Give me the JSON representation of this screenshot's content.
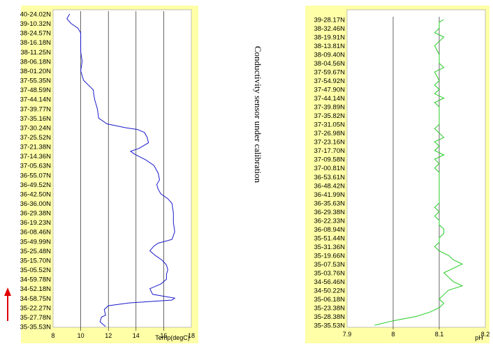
{
  "note": "Conductivity sensor under calibration",
  "colors": {
    "panel_bg": "#ffffa8",
    "plot_bg": "#ffffff",
    "temp_line": "#1a1acc",
    "ph_line": "#22cc22",
    "arrow": "#e00000",
    "grid": "#000000"
  },
  "chart_data": [
    {
      "type": "line",
      "xlabel": "Temp(degC)",
      "xlim": [
        8,
        18
      ],
      "xticks": [
        8,
        10,
        12,
        14,
        16,
        18
      ],
      "grid_x": [
        10,
        12,
        14,
        16
      ],
      "ylabels": [
        "40-24.02N",
        "39-10.32N",
        "38-24.57N",
        "38-16.18N",
        "38-11.25N",
        "38-06.18N",
        "38-01.20N",
        "37-55.35N",
        "37-48.59N",
        "37-44.14N",
        "37-39.77N",
        "37-35.16N",
        "37-30.24N",
        "37-25.52N",
        "37-21.38N",
        "37-14.36N",
        "37-05.63N",
        "36-55.07N",
        "36-49.52N",
        "36-42.50N",
        "36-36.00N",
        "36-29.38N",
        "36-19.23N",
        "36-08.46N",
        "35-49.99N",
        "35-25.48N",
        "35-15.70N",
        "35-05.52N",
        "34-59.78N",
        "34-52.18N",
        "34-58.75N",
        "35-22.27N",
        "35-27.78N",
        "35-35.53N"
      ],
      "series": [
        {
          "points": [
            [
              9.2,
              0
            ],
            [
              9.0,
              0.5
            ],
            [
              9.3,
              1
            ],
            [
              9.8,
              1.5
            ],
            [
              10.0,
              2
            ],
            [
              10.0,
              3
            ],
            [
              10.0,
              4
            ],
            [
              10.1,
              5
            ],
            [
              10.0,
              6
            ],
            [
              10.2,
              7
            ],
            [
              10.9,
              8
            ],
            [
              11.0,
              9
            ],
            [
              11.2,
              10
            ],
            [
              11.3,
              11
            ],
            [
              11.9,
              11.6
            ],
            [
              13.2,
              12
            ],
            [
              14.1,
              12.2
            ],
            [
              14.6,
              12.5
            ],
            [
              14.8,
              13
            ],
            [
              14.9,
              13.6
            ],
            [
              14.2,
              14.2
            ],
            [
              13.6,
              14.5
            ],
            [
              13.9,
              14.8
            ],
            [
              14.7,
              15.4
            ],
            [
              15.3,
              16
            ],
            [
              15.6,
              16.8
            ],
            [
              15.7,
              17.5
            ],
            [
              15.5,
              18
            ],
            [
              15.6,
              18.5
            ],
            [
              15.8,
              19
            ],
            [
              16.3,
              19.5
            ],
            [
              16.6,
              20
            ],
            [
              16.7,
              21
            ],
            [
              16.7,
              22
            ],
            [
              16.8,
              23
            ],
            [
              16.6,
              23.8
            ],
            [
              15.6,
              24.2
            ],
            [
              15.3,
              24.5
            ],
            [
              15.0,
              25
            ],
            [
              15.4,
              25.5
            ],
            [
              15.9,
              26
            ],
            [
              16.2,
              26.5
            ],
            [
              16.3,
              27
            ],
            [
              16.2,
              27.5
            ],
            [
              16.2,
              28
            ],
            [
              15.8,
              28.5
            ],
            [
              15.0,
              29
            ],
            [
              15.2,
              29.6
            ],
            [
              16.8,
              30
            ],
            [
              16.6,
              30.2
            ],
            [
              13.5,
              30.5
            ],
            [
              12.0,
              30.8
            ],
            [
              11.7,
              31.2
            ],
            [
              11.8,
              31.8
            ],
            [
              11.5,
              32
            ],
            [
              11.4,
              32.5
            ],
            [
              11.8,
              33
            ]
          ]
        }
      ]
    },
    {
      "type": "line",
      "xlabel": "pH",
      "xlim": [
        7.9,
        8.2
      ],
      "xticks": [
        "7.9",
        "8",
        "8.1",
        "8.2"
      ],
      "grid_x": [
        8,
        8.1
      ],
      "ylabels": [
        "39-28.17N",
        "38-32.46N",
        "38-19.91N",
        "38-13.81N",
        "38-09.40N",
        "38-04.56N",
        "37-59.67N",
        "37-54.92N",
        "37-47.90N",
        "37-44.14N",
        "37-39.89N",
        "37-35.82N",
        "37-31.05N",
        "37-26.98N",
        "37-23.16N",
        "37-17.70N",
        "37-09.58N",
        "37-00.81N",
        "36-53.61N",
        "36-48.42N",
        "36-41.99N",
        "36-35.63N",
        "36-29.38N",
        "36-22.33N",
        "36-08.94N",
        "35-51.44N",
        "35-31.36N",
        "35-19.66N",
        "35-07.53N",
        "35-03.76N",
        "34-56.46N",
        "34-50.22N",
        "35-06.18N",
        "35-23.38N",
        "35-28.38N",
        "35-35.53N"
      ],
      "series": [
        {
          "points": [
            [
              8.11,
              0
            ],
            [
              8.1,
              0.3
            ],
            [
              8.1,
              1
            ],
            [
              8.09,
              1.5
            ],
            [
              8.11,
              2
            ],
            [
              8.1,
              2.5
            ],
            [
              8.09,
              3
            ],
            [
              8.1,
              4
            ],
            [
              8.1,
              5
            ],
            [
              8.11,
              5.5
            ],
            [
              8.09,
              6
            ],
            [
              8.1,
              7
            ],
            [
              8.09,
              7.5
            ],
            [
              8.1,
              8
            ],
            [
              8.09,
              8.5
            ],
            [
              8.11,
              9
            ],
            [
              8.09,
              9.5
            ],
            [
              8.1,
              10
            ],
            [
              8.1,
              11
            ],
            [
              8.1,
              12
            ],
            [
              8.09,
              12.5
            ],
            [
              8.1,
              13
            ],
            [
              8.11,
              13.5
            ],
            [
              8.09,
              14
            ],
            [
              8.1,
              14.5
            ],
            [
              8.09,
              15
            ],
            [
              8.11,
              15.5
            ],
            [
              8.09,
              16
            ],
            [
              8.1,
              16.5
            ],
            [
              8.09,
              17
            ],
            [
              8.1,
              17.5
            ],
            [
              8.1,
              18
            ],
            [
              8.1,
              19
            ],
            [
              8.1,
              20
            ],
            [
              8.1,
              21
            ],
            [
              8.09,
              21.5
            ],
            [
              8.1,
              22
            ],
            [
              8.09,
              22.5
            ],
            [
              8.1,
              23
            ],
            [
              8.1,
              23.5
            ],
            [
              8.11,
              24
            ],
            [
              8.11,
              24.5
            ],
            [
              8.1,
              25
            ],
            [
              8.1,
              25.5
            ],
            [
              8.09,
              26
            ],
            [
              8.1,
              26.5
            ],
            [
              8.12,
              27
            ],
            [
              8.13,
              27.5
            ],
            [
              8.15,
              28
            ],
            [
              8.13,
              28.5
            ],
            [
              8.11,
              29
            ],
            [
              8.12,
              29.5
            ],
            [
              8.13,
              30
            ],
            [
              8.15,
              30.5
            ],
            [
              8.12,
              31
            ],
            [
              8.11,
              31.5
            ],
            [
              8.1,
              32
            ],
            [
              8.11,
              32.5
            ],
            [
              8.1,
              33
            ],
            [
              8.08,
              33.5
            ],
            [
              8.05,
              34
            ],
            [
              8.0,
              34.5
            ],
            [
              7.96,
              35
            ]
          ]
        }
      ]
    }
  ]
}
